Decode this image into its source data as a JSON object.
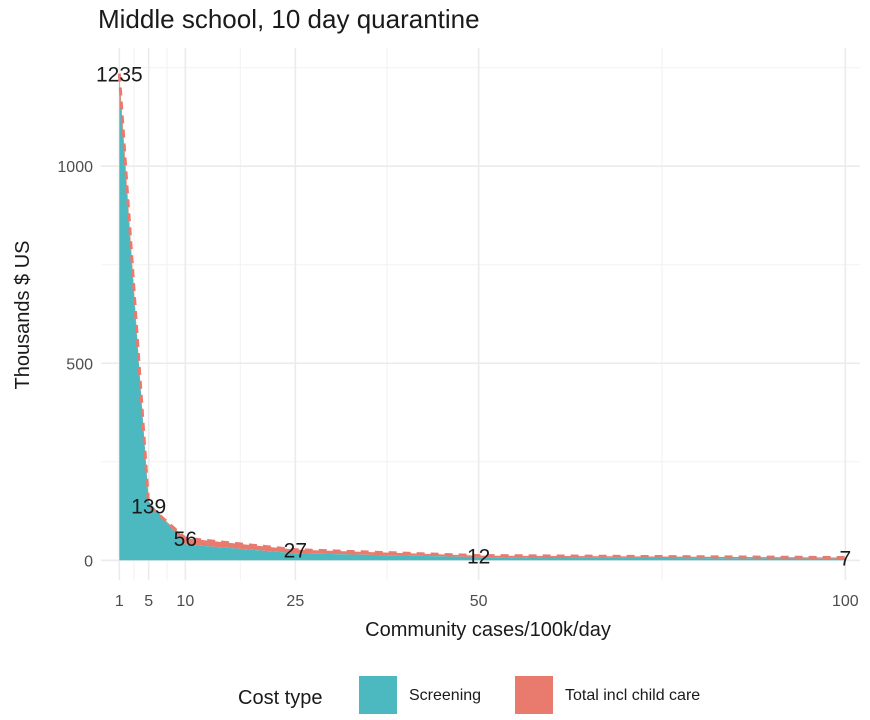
{
  "chart_data": {
    "type": "area",
    "title": "Middle school, 10 day quarantine",
    "xlabel": "Community cases/100k/day",
    "ylabel": "Thousands $ US",
    "xlim": [
      -1.5,
      102
    ],
    "ylim": [
      -50,
      1300
    ],
    "x_ticks": [
      1,
      5,
      10,
      25,
      50,
      100
    ],
    "x_tick_labels": [
      "1",
      "5",
      "10",
      "25",
      "50",
      "100"
    ],
    "y_ticks": [
      0,
      500,
      1000
    ],
    "y_tick_labels": [
      "0",
      "500",
      "1000"
    ],
    "x_minor_gridlines": [
      3,
      7.5,
      17.5,
      37.5,
      75
    ],
    "y_minor_gridlines": [
      250,
      750,
      1250
    ],
    "grid": true,
    "legend_position": "bottom",
    "legend_title": "Cost type",
    "series": [
      {
        "name": "Screening",
        "color": "#4cb9c0",
        "x": [
          1,
          5,
          10,
          25,
          50,
          100
        ],
        "values": [
          1200,
          150,
          40,
          18,
          8,
          4
        ]
      },
      {
        "name": "Total incl child care",
        "color": "#e87a6e",
        "dashed_top_line": true,
        "x": [
          1,
          5,
          10,
          25,
          50,
          100
        ],
        "values": [
          1235,
          139,
          56,
          27,
          12,
          7
        ]
      }
    ],
    "data_labels": [
      {
        "x": 1,
        "value": "1235"
      },
      {
        "x": 5,
        "value": "139"
      },
      {
        "x": 10,
        "value": "56"
      },
      {
        "x": 25,
        "value": "27"
      },
      {
        "x": 50,
        "value": "12"
      },
      {
        "x": 100,
        "value": "7"
      }
    ]
  }
}
